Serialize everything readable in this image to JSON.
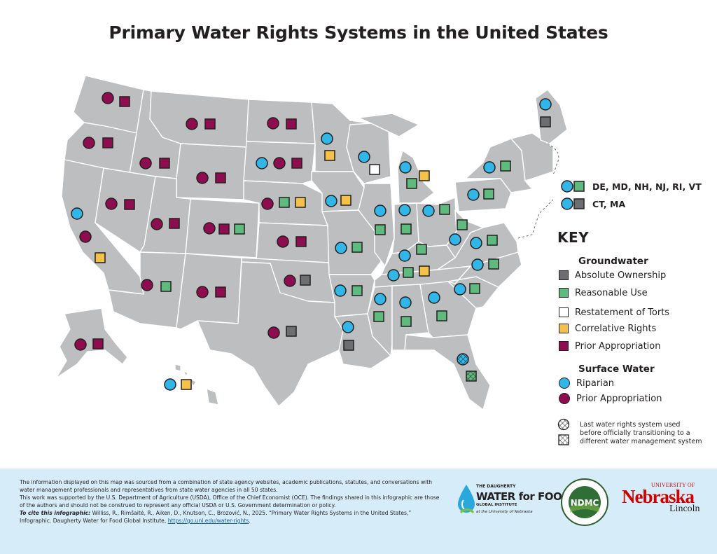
{
  "title": "Primary Water Rights Systems in the United States",
  "colors": {
    "land": "#bcbec0",
    "riparian": "#31b6e8",
    "prior_appropriation": "#8e0d4f",
    "absolute_ownership": "#6d6e71",
    "reasonable_use": "#5fba7d",
    "restatement_of_torts": "#ffffff",
    "correlative_rights": "#f4c24a",
    "footer_bg": "#d6ecf8",
    "unl_red": "#d00000"
  },
  "groups": {
    "g1_label": "DE, MD, NH, NJ, RI, VT",
    "g1_surface": "riparian",
    "g1_ground": "reasonable_use",
    "g2_label": "CT, MA",
    "g2_surface": "riparian",
    "g2_ground": "absolute_ownership"
  },
  "key": {
    "title": "KEY",
    "groundwater_heading": "Groundwater",
    "absolute_ownership": "Absolute Ownership",
    "reasonable_use": "Reasonable Use",
    "restatement_of_torts": "Restatement of Torts",
    "correlative_rights": "Correlative Rights",
    "prior_appropriation_gw": "Prior Appropriation",
    "surface_heading": "Surface Water",
    "riparian": "Riparian",
    "prior_appropriation_sw": "Prior Appropriation",
    "transition_note": "Last water rights system used before officially transitioning to a different water management system"
  },
  "states": [
    {
      "state": "WA",
      "surface": "prior_appropriation",
      "ground": "prior_appropriation"
    },
    {
      "state": "OR",
      "surface": "prior_appropriation",
      "ground": "prior_appropriation"
    },
    {
      "state": "CA",
      "surface": [
        "riparian",
        "prior_appropriation"
      ],
      "ground": "correlative_rights"
    },
    {
      "state": "ID",
      "surface": "prior_appropriation",
      "ground": "prior_appropriation"
    },
    {
      "state": "NV",
      "surface": "prior_appropriation",
      "ground": "prior_appropriation"
    },
    {
      "state": "MT",
      "surface": "prior_appropriation",
      "ground": "prior_appropriation"
    },
    {
      "state": "WY",
      "surface": "prior_appropriation",
      "ground": "prior_appropriation"
    },
    {
      "state": "UT",
      "surface": "prior_appropriation",
      "ground": "prior_appropriation"
    },
    {
      "state": "CO",
      "surface": "prior_appropriation",
      "ground": [
        "prior_appropriation",
        "reasonable_use"
      ]
    },
    {
      "state": "AZ",
      "surface": "prior_appropriation",
      "ground": "reasonable_use"
    },
    {
      "state": "NM",
      "surface": "prior_appropriation",
      "ground": "prior_appropriation"
    },
    {
      "state": "ND",
      "surface": "prior_appropriation",
      "ground": "prior_appropriation"
    },
    {
      "state": "SD",
      "surface": [
        "riparian",
        "prior_appropriation"
      ],
      "ground": "prior_appropriation"
    },
    {
      "state": "NE",
      "surface": "prior_appropriation",
      "ground": [
        "reasonable_use",
        "correlative_rights"
      ]
    },
    {
      "state": "KS",
      "surface": "prior_appropriation",
      "ground": "prior_appropriation"
    },
    {
      "state": "OK",
      "surface": "prior_appropriation",
      "ground": "absolute_ownership"
    },
    {
      "state": "TX",
      "surface": "prior_appropriation",
      "ground": "absolute_ownership"
    },
    {
      "state": "MN",
      "surface": "riparian",
      "ground": "correlative_rights"
    },
    {
      "state": "IA",
      "surface": "riparian",
      "ground": "correlative_rights"
    },
    {
      "state": "MO",
      "surface": "riparian",
      "ground": "reasonable_use"
    },
    {
      "state": "AR",
      "surface": "riparian",
      "ground": "reasonable_use"
    },
    {
      "state": "LA",
      "surface": "riparian",
      "ground": "absolute_ownership"
    },
    {
      "state": "WI",
      "surface": "riparian",
      "ground": "restatement_of_torts"
    },
    {
      "state": "IL",
      "surface": "riparian",
      "ground": "reasonable_use"
    },
    {
      "state": "MI",
      "surface": "riparian",
      "ground": [
        "reasonable_use",
        "correlative_rights"
      ]
    },
    {
      "state": "IN",
      "surface": "riparian",
      "ground": "reasonable_use"
    },
    {
      "state": "OH",
      "surface": "riparian",
      "ground": "reasonable_use"
    },
    {
      "state": "KY",
      "surface": "riparian",
      "ground": "reasonable_use"
    },
    {
      "state": "TN",
      "surface": "riparian",
      "ground": [
        "reasonable_use",
        "correlative_rights"
      ]
    },
    {
      "state": "MS",
      "surface": "riparian",
      "ground": "reasonable_use"
    },
    {
      "state": "AL",
      "surface": "riparian",
      "ground": "reasonable_use"
    },
    {
      "state": "GA",
      "surface": "riparian",
      "ground": "reasonable_use"
    },
    {
      "state": "FL",
      "surface": "riparian (last system before transition)",
      "ground": "reasonable_use (last system before transition)"
    },
    {
      "state": "SC",
      "surface": "riparian",
      "ground": "reasonable_use"
    },
    {
      "state": "NC",
      "surface": "riparian",
      "ground": "reasonable_use"
    },
    {
      "state": "VA",
      "surface": "riparian",
      "ground": "reasonable_use"
    },
    {
      "state": "WV",
      "surface": "riparian",
      "ground": "reasonable_use"
    },
    {
      "state": "PA",
      "surface": "riparian",
      "ground": "reasonable_use"
    },
    {
      "state": "NY",
      "surface": "riparian",
      "ground": "reasonable_use"
    },
    {
      "state": "ME",
      "surface": "riparian",
      "ground": "absolute_ownership"
    },
    {
      "state": "AK",
      "surface": "prior_appropriation",
      "ground": "prior_appropriation"
    },
    {
      "state": "HI",
      "surface": "riparian",
      "ground": "correlative_rights"
    }
  ],
  "footer": {
    "source": "The information displayed on this map was sourced from a combination of state agency websites, academic publications, statutes, and conversations with water management professionals and representatives from state water agencies in all 50 states.",
    "funding": "This work was supported by the U.S. Department of Agriculture (USDA), Office of the Chief Economist (OCE). The findings shared in this infographic are those of the authors and should not be construed to represent any official USDA or U.S. Government determination or policy.",
    "cite_label": "To cite this infographic:",
    "cite_text": "Williss, R., Rimšaitė, R., Aiken, D., Knutson, C., Brozović, N., 2025. “Primary Water Rights Systems in the United States,” Infographic. Daugherty Water for Food Global Institute,",
    "link": "https://go.unl.edu/water-rights",
    "link_suffix": "."
  },
  "logos": {
    "dwfi_line1": "THE DAUGHERTY",
    "dwfi_line2": "WATER for FOOD",
    "dwfi_line3": "GLOBAL INSTITUTE",
    "dwfi_line4": "at the University of Nebraska",
    "ndmc_center": "NDMC",
    "ndmc_ring": "NATIONAL DROUGHT MITIGATION CENTER",
    "ndmc_ring_bottom": "UNIVERSITY OF NEBRASKA",
    "unl_line1": "UNIVERSITY OF",
    "unl_line2": "Nebraska",
    "unl_line3": "Lincoln"
  }
}
